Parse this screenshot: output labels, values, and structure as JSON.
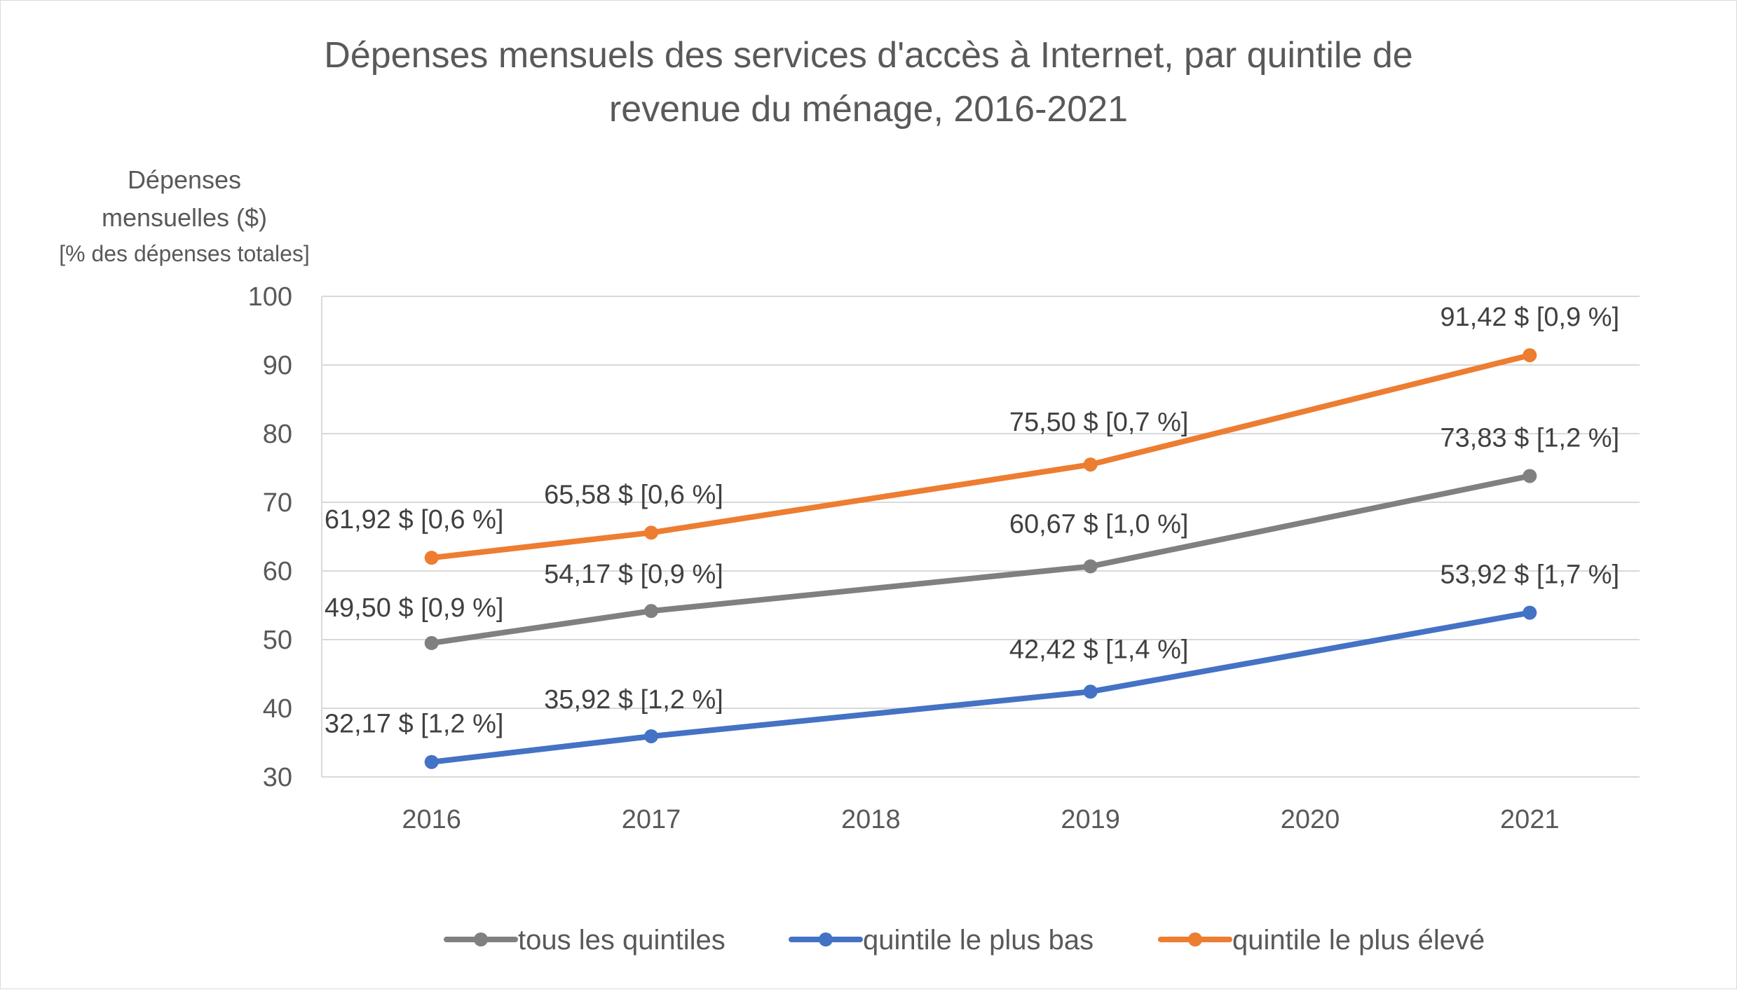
{
  "chart_data": {
    "type": "line",
    "title_lines": [
      "Dépenses mensuels des services d'accès à Internet, par quintile de",
      "revenue du ménage, 2016-2021"
    ],
    "ylabel_lines": [
      "Dépenses",
      "mensuelles ($)",
      "[% des dépenses totales]"
    ],
    "xlabel": "",
    "categories": [
      "2016",
      "2017",
      "2018",
      "2019",
      "2020",
      "2021"
    ],
    "ylim": [
      30,
      100
    ],
    "yticks": [
      "30",
      "40",
      "50",
      "60",
      "70",
      "80",
      "90",
      "100"
    ],
    "grid": true,
    "legend_position": "bottom",
    "series": [
      {
        "name": "tous les quintiles",
        "color": "#808080",
        "x": [
          "2016",
          "2017",
          "2019",
          "2021"
        ],
        "values": [
          49.5,
          54.17,
          60.67,
          73.83
        ],
        "labels": [
          "49,50 $ [0,9 %]",
          "54,17 $ [0,9 %]",
          "60,67 $ [1,0 %]",
          "73,83 $ [1,2 %]"
        ]
      },
      {
        "name": "quintile le plus bas",
        "color": "#4472C4",
        "x": [
          "2016",
          "2017",
          "2019",
          "2021"
        ],
        "values": [
          32.17,
          35.92,
          42.42,
          53.92
        ],
        "labels": [
          "32,17 $ [1,2 %]",
          "35,92 $ [1,2 %]",
          "42,42 $ [1,4 %]",
          "53,92 $ [1,7 %]"
        ]
      },
      {
        "name": "quintile le plus élevé",
        "color": "#ED7D31",
        "x": [
          "2016",
          "2017",
          "2019",
          "2021"
        ],
        "values": [
          61.92,
          65.58,
          75.5,
          91.42
        ],
        "labels": [
          "61,92 $ [0,6 %]",
          "65,58 $ [0,6 %]",
          "75,50 $ [0,7 %]",
          "91,42 $ [0,9 %]"
        ]
      }
    ]
  }
}
